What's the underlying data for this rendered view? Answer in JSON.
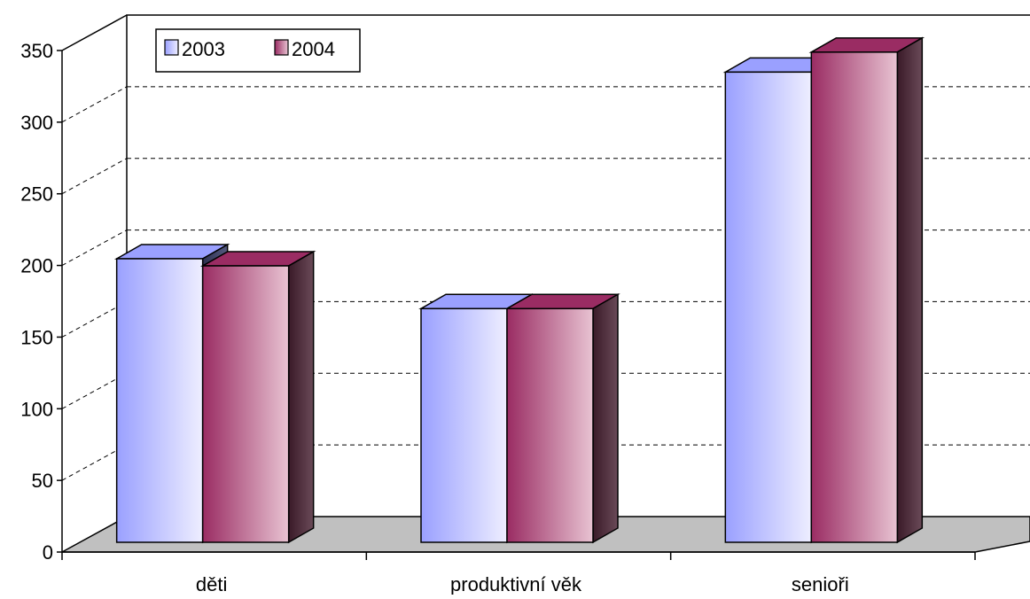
{
  "chart_data": {
    "type": "bar",
    "categories": [
      "děti",
      "produktivní věk",
      "senioři"
    ],
    "series": [
      {
        "name": "2003",
        "values": [
          199,
          164,
          330
        ]
      },
      {
        "name": "2004",
        "values": [
          194,
          164,
          344
        ]
      }
    ],
    "ylim": [
      0,
      350
    ],
    "yticks": [
      0,
      50,
      100,
      150,
      200,
      250,
      300,
      350
    ],
    "grid": true,
    "legend_position": "top-left",
    "colors": {
      "series_2003_left": "#9aa0ff",
      "series_2003_right": "#eeeeff",
      "series_2004_left": "#9a2c63",
      "series_2004_right": "#e8c3d2",
      "floor": "#c0c0c0",
      "grid": "#000000"
    }
  }
}
